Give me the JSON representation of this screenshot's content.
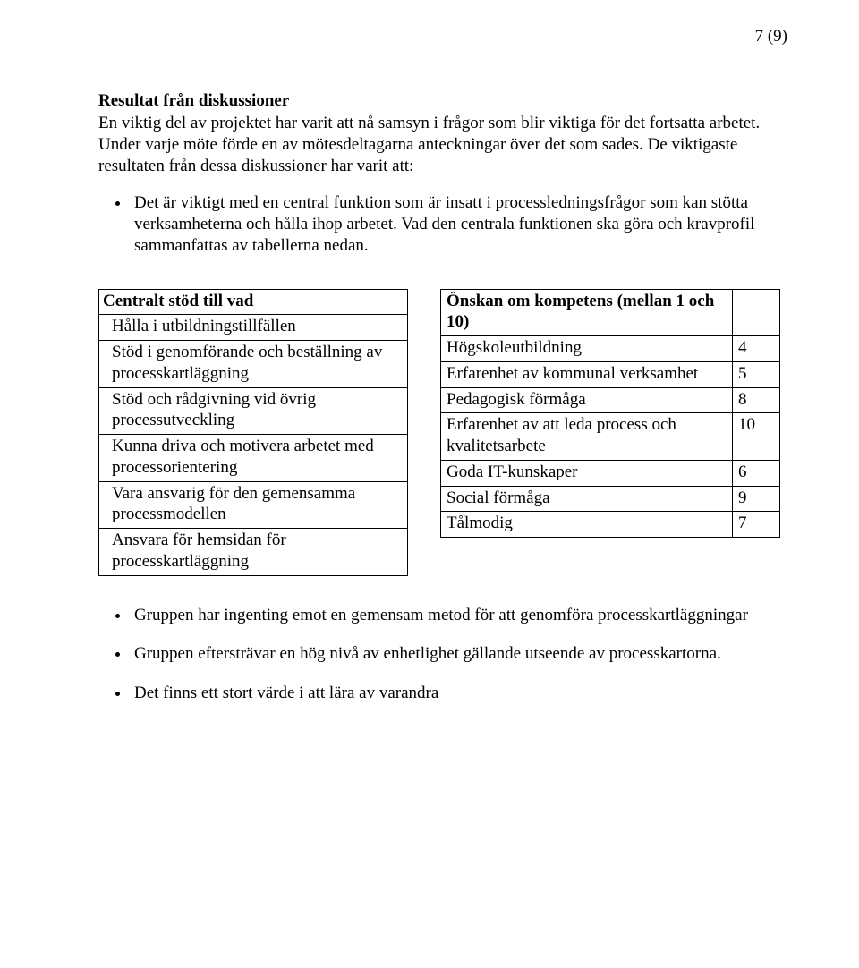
{
  "pageNumber": "7 (9)",
  "sectionTitle": "Resultat från diskussioner",
  "paragraph": "En viktig del av projektet har varit att nå samsyn i frågor som blir viktiga för det fortsatta arbetet. Under varje möte förde en av mötesdeltagarna anteckningar över det som sades. De viktigaste resultaten från dessa diskussioner har varit att:",
  "bullet1": "Det är viktigt med en central funktion som är insatt i processledningsfrågor som kan stötta verksamheterna och hålla ihop arbetet. Vad den centrala funktionen ska göra och kravprofil sammanfattas av tabellerna nedan.",
  "leftTable": {
    "header": "Centralt stöd till vad",
    "rows": [
      "Hålla i utbildningstillfällen",
      "Stöd i genomförande och beställning av processkartläggning",
      "Stöd och rådgivning vid övrig processutveckling",
      "Kunna driva och motivera arbetet med processorientering",
      "Vara ansvarig för den gemensamma processmodellen",
      "Ansvara för hemsidan för processkartläggning"
    ]
  },
  "rightTable": {
    "header": "Önskan om kompetens (mellan 1 och 10)",
    "rows": [
      {
        "label": "Högskoleutbildning",
        "value": "4"
      },
      {
        "label": "Erfarenhet av kommunal verksamhet",
        "value": "5"
      },
      {
        "label": "Pedagogisk förmåga",
        "value": "8"
      },
      {
        "label": "Erfarenhet av att leda process och kvalitetsarbete",
        "value": "10"
      },
      {
        "label": "Goda IT-kunskaper",
        "value": "6"
      },
      {
        "label": "Social förmåga",
        "value": "9"
      },
      {
        "label": "Tålmodig",
        "value": "7"
      }
    ]
  },
  "bullet2": "Gruppen har ingenting emot en gemensam metod för att genomföra processkartläggningar",
  "bullet3": "Gruppen eftersträvar en hög nivå av enhetlighet gällande utseende av processkartorna.",
  "bullet4": "Det finns ett stort värde i att lära av varandra"
}
